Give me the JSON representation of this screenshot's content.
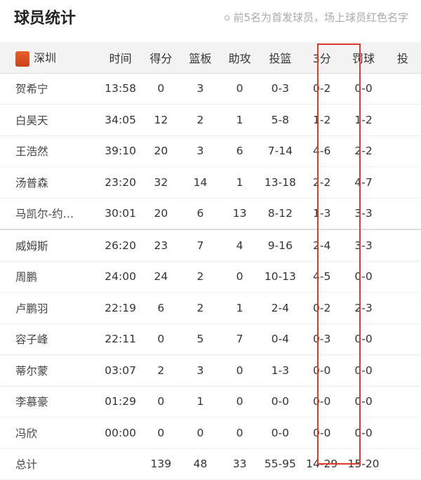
{
  "header": {
    "title": "球员统计",
    "note": "前5名为首发球员，场上球员红色名字"
  },
  "team": {
    "name": "深圳",
    "logo": "shenzhen-team-logo"
  },
  "columns": [
    "时间",
    "得分",
    "篮板",
    "助攻",
    "投篮",
    "3分",
    "罚球",
    "投"
  ],
  "highlight_color": "#e03a2c",
  "players": [
    [
      "贺希宁",
      "13:58",
      "0",
      "3",
      "0",
      "0-3",
      "0-2",
      "0-0"
    ],
    [
      "白昊天",
      "34:05",
      "12",
      "2",
      "1",
      "5-8",
      "1-2",
      "1-2"
    ],
    [
      "王浩然",
      "39:10",
      "20",
      "3",
      "6",
      "7-14",
      "4-6",
      "2-2"
    ],
    [
      "汤普森",
      "23:20",
      "32",
      "14",
      "1",
      "13-18",
      "2-2",
      "4-7"
    ],
    [
      "马凯尔-约…",
      "30:01",
      "20",
      "6",
      "13",
      "8-12",
      "1-3",
      "3-3"
    ],
    [
      "威姆斯",
      "26:20",
      "23",
      "7",
      "4",
      "9-16",
      "2-4",
      "3-3"
    ],
    [
      "周鹏",
      "24:00",
      "24",
      "2",
      "0",
      "10-13",
      "4-5",
      "0-0"
    ],
    [
      "卢鹏羽",
      "22:19",
      "6",
      "2",
      "1",
      "2-4",
      "0-2",
      "2-3"
    ],
    [
      "容子峰",
      "22:11",
      "0",
      "5",
      "7",
      "0-4",
      "0-3",
      "0-0"
    ],
    [
      "蒂尔蒙",
      "03:07",
      "2",
      "3",
      "0",
      "1-3",
      "0-0",
      "0-0"
    ],
    [
      "李慕豪",
      "01:29",
      "0",
      "1",
      "0",
      "0-0",
      "0-0",
      "0-0"
    ],
    [
      "冯欣",
      "00:00",
      "0",
      "0",
      "0",
      "0-0",
      "0-0",
      "0-0"
    ]
  ],
  "total": [
    "总计",
    "",
    "139",
    "48",
    "33",
    "55-95",
    "14-29",
    "15-20"
  ]
}
